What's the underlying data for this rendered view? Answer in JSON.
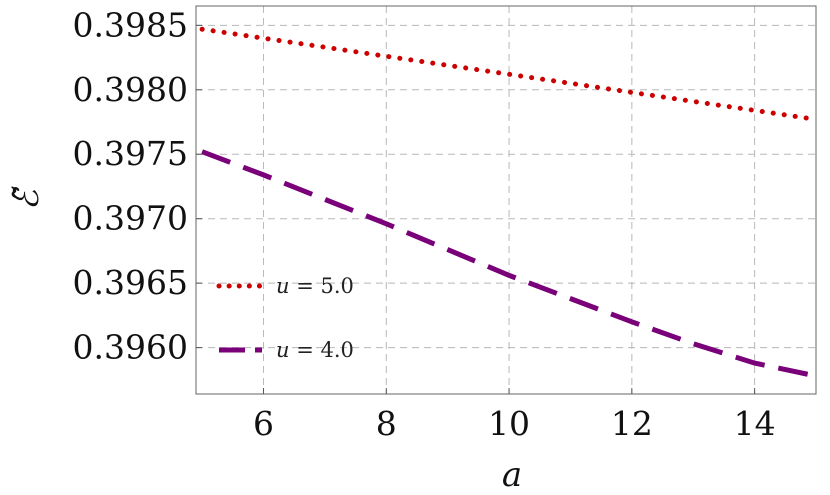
{
  "chart_data": {
    "type": "line",
    "title": "",
    "xlabel": "a",
    "ylabel": "ℰ̃",
    "xlim": [
      4.9,
      15.0
    ],
    "ylim": [
      0.39564,
      0.39865
    ],
    "x_ticks": [
      6,
      8,
      10,
      12,
      14
    ],
    "x_tick_labels": [
      "6",
      "8",
      "10",
      "12",
      "14"
    ],
    "y_ticks": [
      0.396,
      0.3965,
      0.397,
      0.3975,
      0.398,
      0.3985
    ],
    "y_tick_labels": [
      "0.3960",
      "0.3965",
      "0.3970",
      "0.3975",
      "0.3980",
      "0.3985"
    ],
    "grid": true,
    "legend_position": "bottom-left",
    "series": [
      {
        "name": "u = 5.0",
        "label_var": "u",
        "label_rest": " = 5.0",
        "style": "dotted",
        "color": "#cc0000",
        "x": [
          5,
          6,
          7,
          8,
          9,
          10,
          11,
          12,
          13,
          14,
          15
        ],
        "y": [
          0.39847,
          0.3984,
          0.39833,
          0.39826,
          0.39819,
          0.39812,
          0.39805,
          0.39798,
          0.39791,
          0.39784,
          0.39777
        ]
      },
      {
        "name": "u = 4.0",
        "label_var": "u",
        "label_rest": " = 4.0",
        "style": "dashed",
        "color": "#7a007a",
        "x": [
          5,
          6,
          7,
          8,
          9,
          10,
          11,
          12,
          13,
          14,
          15
        ],
        "y": [
          0.39752,
          0.39734,
          0.39715,
          0.39696,
          0.39676,
          0.39656,
          0.39638,
          0.3962,
          0.39603,
          0.39588,
          0.39578
        ]
      }
    ]
  }
}
